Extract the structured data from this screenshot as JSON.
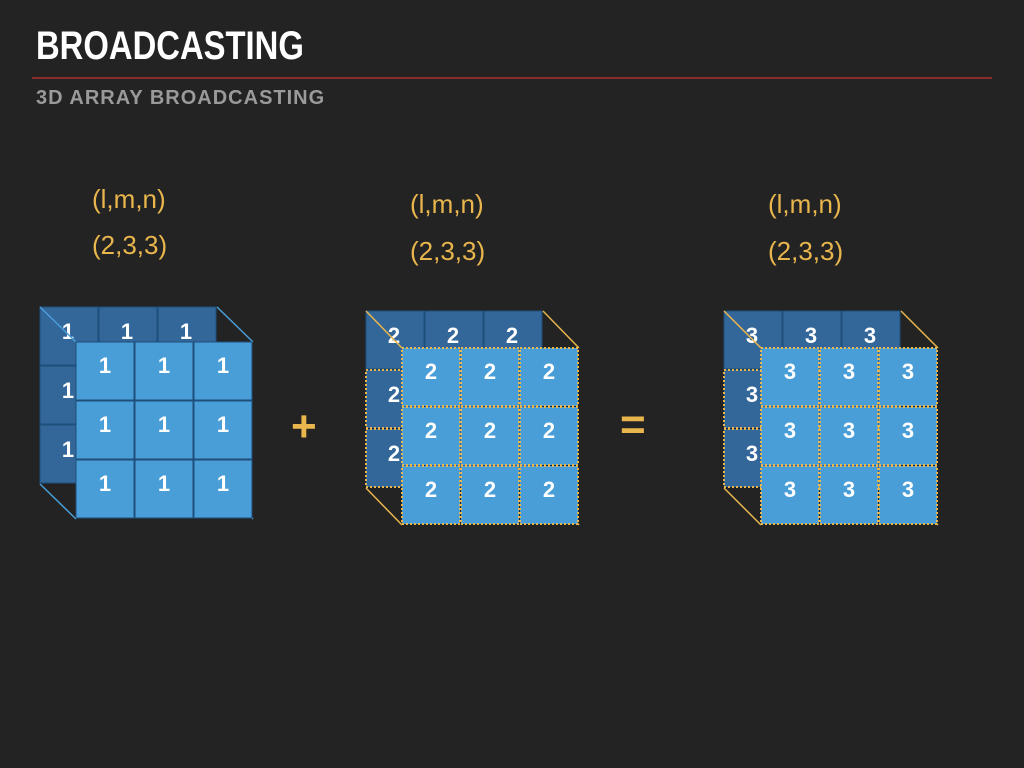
{
  "slide": {
    "title": "BROADCASTING",
    "subtitle": "3D ARRAY BROADCASTING"
  },
  "arrays": [
    {
      "dims_label": "(l,m,n)",
      "shape_label": "(2,3,3)",
      "value": "1",
      "broadcast": false
    },
    {
      "dims_label": "(l,m,n)",
      "shape_label": "(2,3,3)",
      "value": "2",
      "broadcast": true
    },
    {
      "dims_label": "(l,m,n)",
      "shape_label": "(2,3,3)",
      "value": "3",
      "broadcast": true
    }
  ],
  "operators": {
    "plus": "+",
    "equals": "="
  },
  "colors": {
    "background": "#232323",
    "front_cell": "#4a9ed8",
    "back_cell": "#336699",
    "accent": "#e9b64d",
    "rule": "#8a2a2a"
  }
}
